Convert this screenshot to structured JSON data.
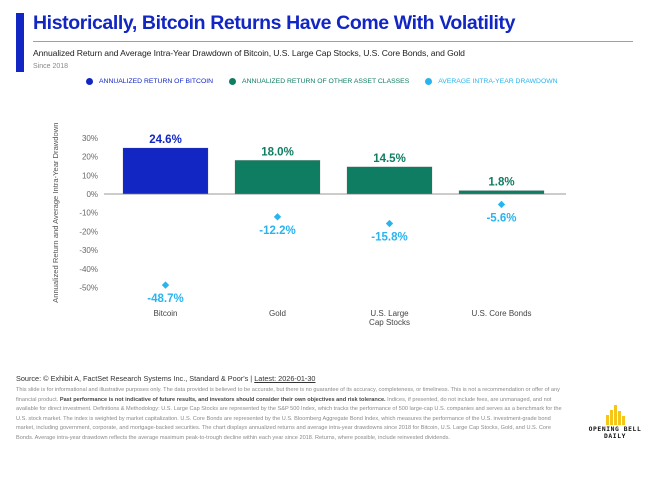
{
  "header": {
    "title": "Historically, Bitcoin Returns Have Come With Volatility",
    "subtitle": "Annualized Return and Average Intra-Year Drawdown of Bitcoin, U.S. Large Cap Stocks, U.S. Core Bonds, and Gold",
    "since": "Since 2018"
  },
  "legend": [
    {
      "label": "ANNUALIZED RETURN OF BITCOIN",
      "color": "#1226c4"
    },
    {
      "label": "ANNUALIZED RETURN OF OTHER ASSET CLASSES",
      "color": "#0f7d62"
    },
    {
      "label": "AVERAGE INTRA-YEAR DRAWDOWN",
      "color": "#2ab4ef"
    }
  ],
  "colors": {
    "bitcoin": "#1226c4",
    "other": "#0f7d62",
    "drawdown": "#2ab4ef",
    "axis": "#777777"
  },
  "chart_data": {
    "type": "bar",
    "title": "Historically, Bitcoin Returns Have Come With Volatility",
    "xlabel": "",
    "ylabel": "Annualized Return and Average Intra-Year Drawdown",
    "categories": [
      "Bitcoin",
      "Gold",
      "U.S. Large\nCap Stocks",
      "U.S. Core Bonds"
    ],
    "category_lines": [
      [
        "Bitcoin"
      ],
      [
        "Gold"
      ],
      [
        "U.S. Large",
        "Cap Stocks"
      ],
      [
        "U.S. Core Bonds"
      ]
    ],
    "series": [
      {
        "name": "Annualized Return",
        "type": "bar",
        "values": [
          24.6,
          18.0,
          14.5,
          1.8
        ],
        "labels": [
          "24.6%",
          "18.0%",
          "14.5%",
          "1.8%"
        ]
      },
      {
        "name": "Average Intra-Year Drawdown",
        "type": "scatter",
        "values": [
          -48.7,
          -12.2,
          -15.8,
          -5.6
        ],
        "labels": [
          "-48.7%",
          "-12.2%",
          "-15.8%",
          "-5.6%"
        ]
      }
    ],
    "yticks": [
      30,
      20,
      10,
      0,
      -10,
      -20,
      -30,
      -40,
      -50
    ],
    "ytick_labels": [
      "30%",
      "20%",
      "10%",
      "0%",
      "-10%",
      "-20%",
      "-30%",
      "-40%",
      "-50%"
    ],
    "ylim": [
      -50,
      30
    ],
    "grid": false,
    "legend_position": "top"
  },
  "footer": {
    "source_prefix": "Source: © Exhibit A, FactSet Research Systems Inc., Standard & Poor's | ",
    "latest": "Latest: 2026-01-30",
    "disclaimer_1": "This slide is for informational and illustrative purposes only. The data provided is believed to be accurate, but there is no guarantee of its accuracy, completeness, or timeliness. This is not a recommendation or offer of any financial product. ",
    "disclaimer_bold": "Past performance is not indicative of future results, and investors should consider their own objectives and risk tolerance.",
    "disclaimer_2": " Indices, if presented, do not include fees, are unmanaged, and not available for direct investment. Definitions & Methodology: U.S. Large Cap Stocks are represented by the S&P 500 Index, which tracks the performance of 500 large-cap U.S. companies and serves as a benchmark for the U.S. stock market. The index is weighted by market capitalization. U.S. Core Bonds are represented by the U.S. Bloomberg Aggregate Bond Index, which measures the performance of the U.S. investment-grade bond market, including government, corporate, and mortgage-backed securities. The chart displays annualized returns and average intra-year drawdowns since 2018 for Bitcoin, U.S. Large Cap Stocks, Gold, and U.S. Core Bonds. Average intra-year drawdown reflects the average maximum peak-to-trough decline within each year since 2018. Returns, where possible, include reinvested dividends."
  },
  "logo": {
    "line1": "OPENING BELL",
    "line2": "DAILY",
    "color": "#f5c518"
  }
}
